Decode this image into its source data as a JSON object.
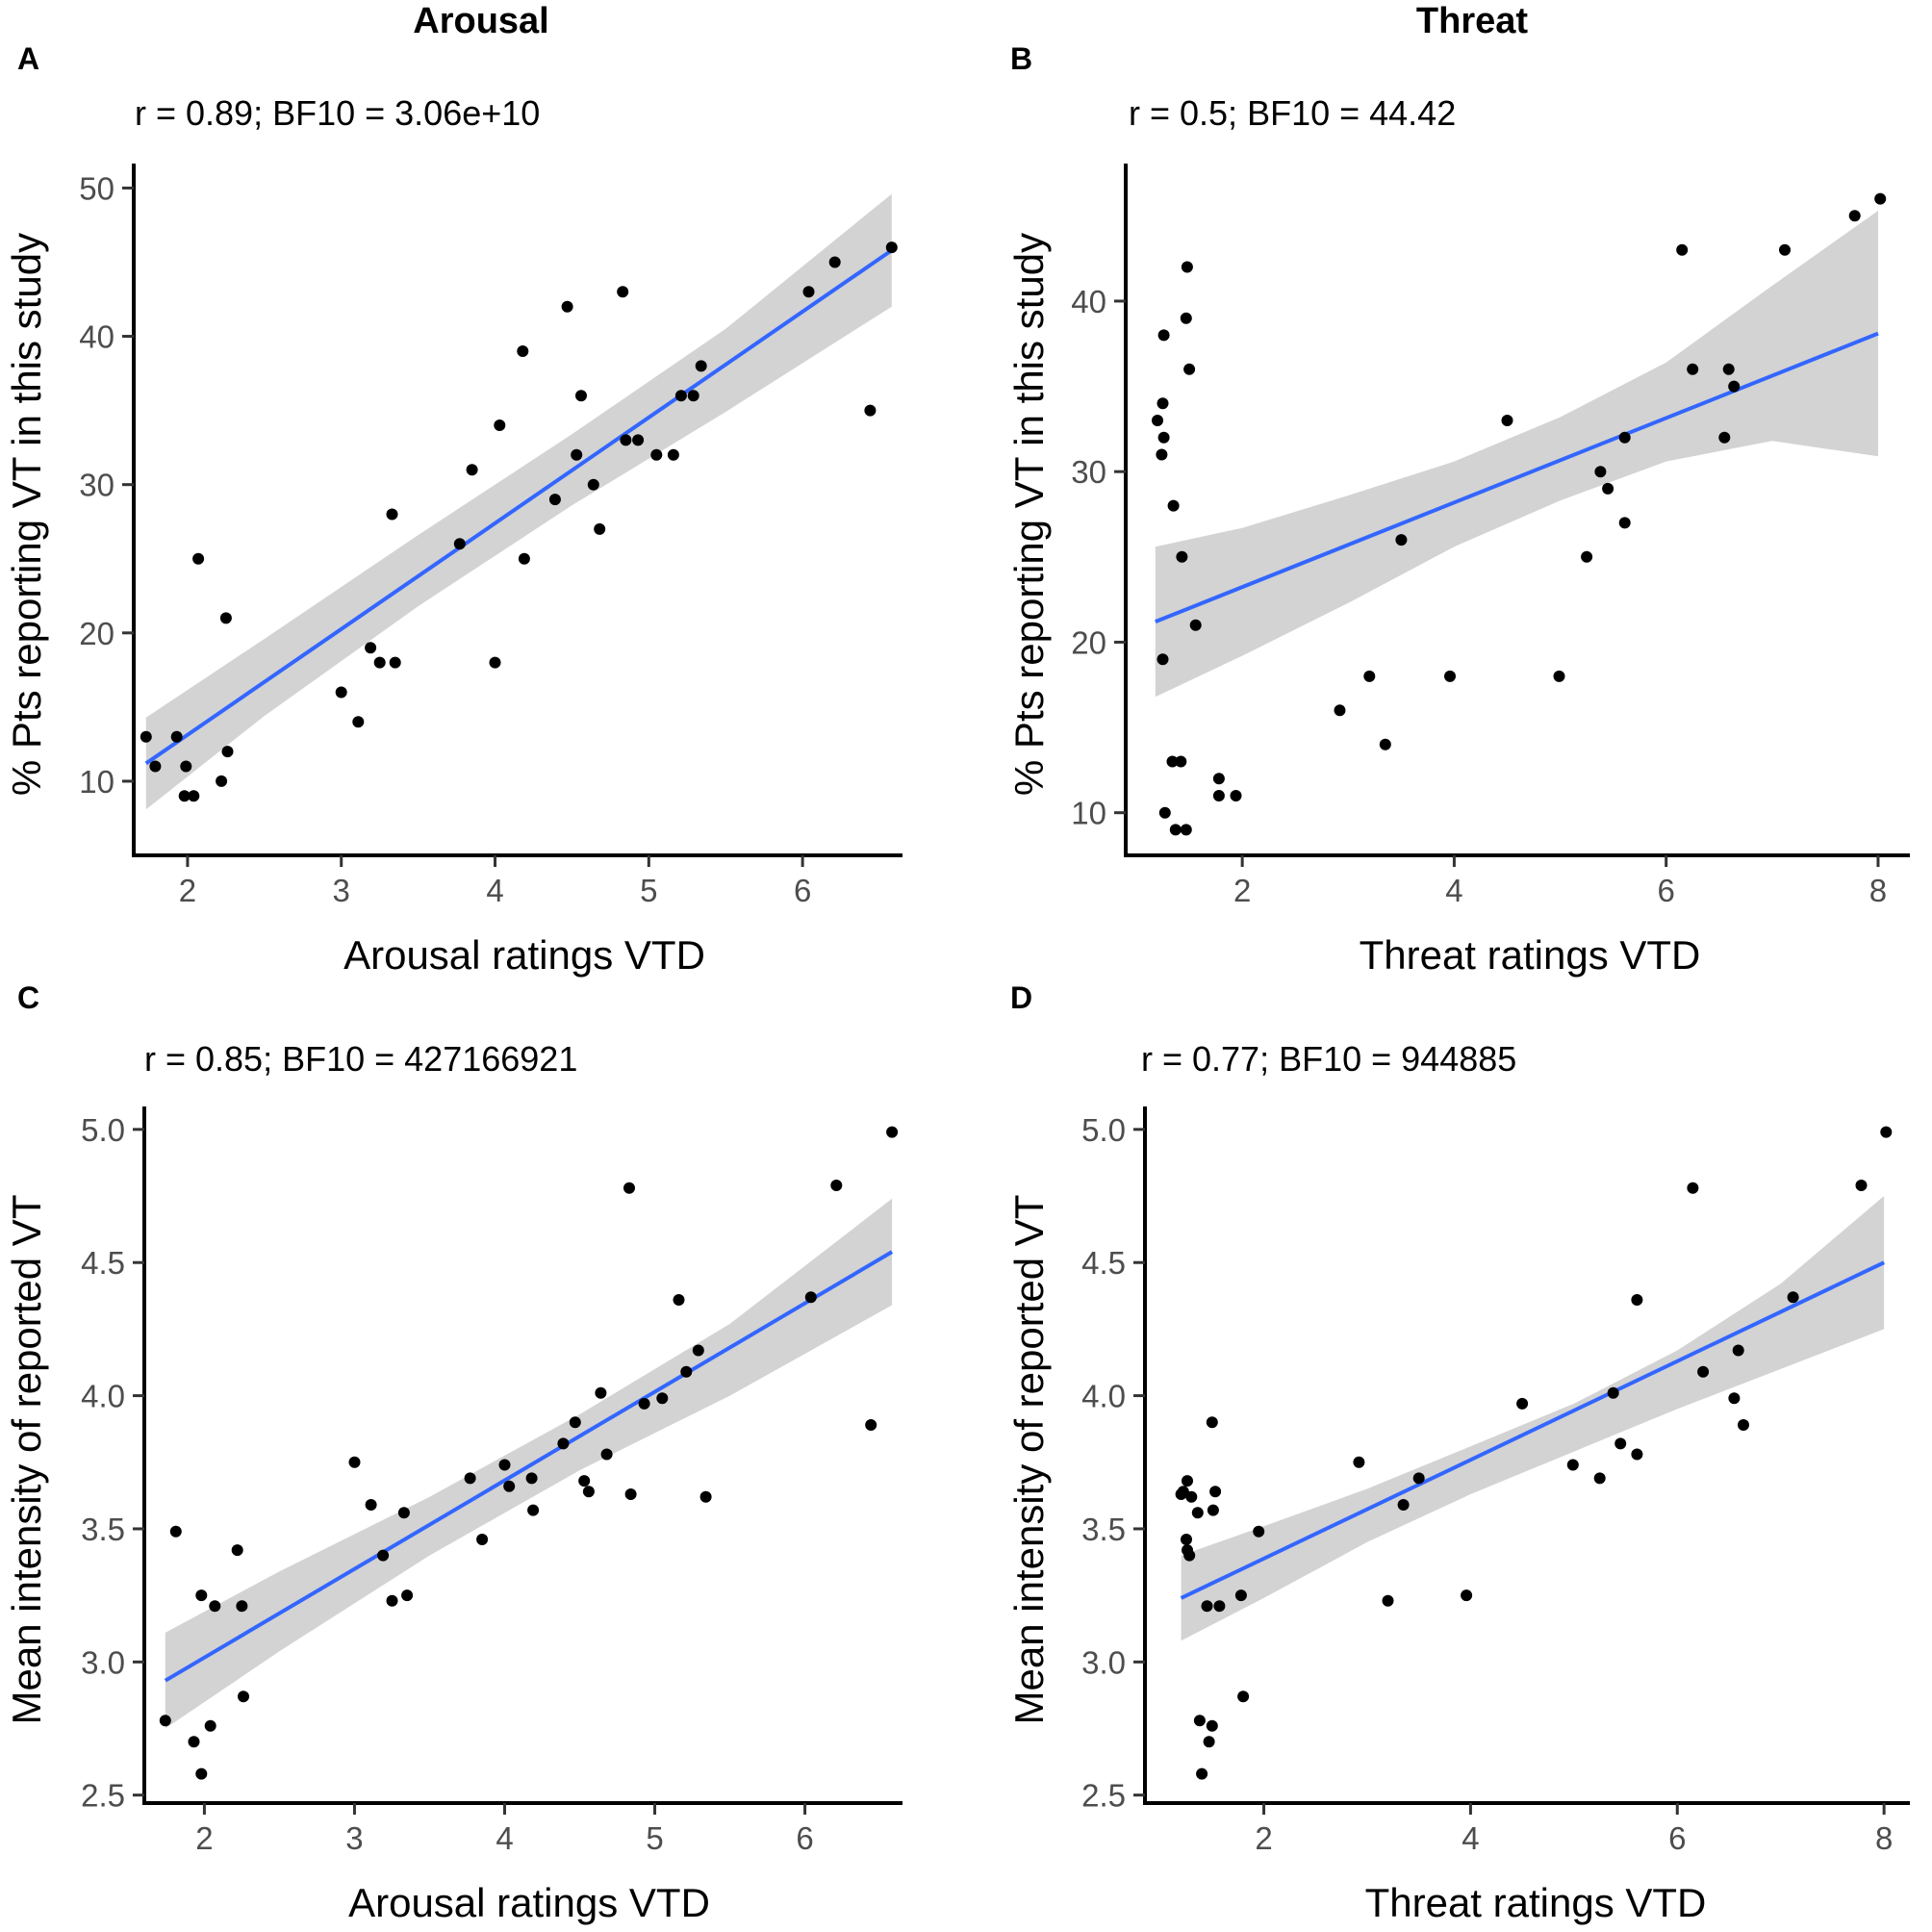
{
  "column_titles": [
    "Arousal",
    "Threat"
  ],
  "chart_data": [
    {
      "type": "scatter",
      "panel_label": "A",
      "annotation": "r = 0.89; BF10 = 3.06e+10",
      "xlabel": "Arousal ratings VTD",
      "ylabel": "% Pts reporting VT in this study",
      "xlim": [
        1.65,
        6.65
      ],
      "ylim": [
        5,
        51
      ],
      "xticks": [
        2,
        3,
        4,
        5,
        6
      ],
      "yticks": [
        10,
        20,
        30,
        40,
        50
      ],
      "fit": {
        "x": [
          1.73,
          6.58
        ],
        "y": [
          11.2,
          45.8
        ]
      },
      "band": {
        "x": [
          1.73,
          2.5,
          3.5,
          4.5,
          5.5,
          6.58
        ],
        "upper": [
          14.3,
          19.6,
          26.6,
          33.4,
          40.5,
          49.6
        ],
        "lower": [
          8.1,
          14.4,
          21.8,
          28.6,
          34.9,
          42.0
        ]
      },
      "points": [
        [
          1.73,
          13
        ],
        [
          1.79,
          11
        ],
        [
          1.93,
          13
        ],
        [
          1.98,
          9
        ],
        [
          1.99,
          11
        ],
        [
          2.04,
          9
        ],
        [
          2.07,
          25
        ],
        [
          2.22,
          10
        ],
        [
          2.25,
          21
        ],
        [
          2.26,
          12
        ],
        [
          3.0,
          16
        ],
        [
          3.11,
          14
        ],
        [
          3.19,
          19
        ],
        [
          3.25,
          18
        ],
        [
          3.33,
          28
        ],
        [
          3.35,
          18
        ],
        [
          3.77,
          26
        ],
        [
          3.85,
          31
        ],
        [
          4.0,
          18
        ],
        [
          4.03,
          34
        ],
        [
          4.18,
          39
        ],
        [
          4.19,
          25
        ],
        [
          4.39,
          29
        ],
        [
          4.47,
          42
        ],
        [
          4.53,
          32
        ],
        [
          4.56,
          36
        ],
        [
          4.64,
          30
        ],
        [
          4.68,
          27
        ],
        [
          4.83,
          43
        ],
        [
          4.85,
          33
        ],
        [
          4.93,
          33
        ],
        [
          5.05,
          32
        ],
        [
          5.16,
          32
        ],
        [
          5.21,
          36
        ],
        [
          5.29,
          36
        ],
        [
          5.34,
          38
        ],
        [
          6.04,
          43
        ],
        [
          6.21,
          45
        ],
        [
          6.44,
          35
        ],
        [
          6.58,
          46
        ]
      ]
    },
    {
      "type": "scatter",
      "panel_label": "B",
      "annotation": "r = 0.5; BF10 = 44.42",
      "xlabel": "Threat ratings VTD",
      "ylabel": "% Pts reporting VT in this study",
      "xlim": [
        0.9,
        8.3
      ],
      "ylim": [
        7.5,
        47.5
      ],
      "xticks": [
        2,
        4,
        6,
        8
      ],
      "yticks": [
        10,
        20,
        30,
        40
      ],
      "fit": {
        "x": [
          1.18,
          8.0
        ],
        "y": [
          21.2,
          38.1
        ]
      },
      "band": {
        "x": [
          1.18,
          2.0,
          3.0,
          4.0,
          5.0,
          6.0,
          7.0,
          8.0
        ],
        "upper": [
          25.6,
          26.7,
          28.6,
          30.6,
          33.2,
          36.4,
          40.9,
          45.3
        ],
        "lower": [
          16.8,
          19.2,
          22.3,
          25.6,
          28.3,
          30.6,
          31.8,
          30.9
        ]
      },
      "points": [
        [
          1.2,
          33
        ],
        [
          1.24,
          31
        ],
        [
          1.25,
          34
        ],
        [
          1.26,
          38
        ],
        [
          1.26,
          32
        ],
        [
          1.25,
          19
        ],
        [
          1.27,
          10
        ],
        [
          1.34,
          13
        ],
        [
          1.35,
          28
        ],
        [
          1.37,
          9
        ],
        [
          1.42,
          13
        ],
        [
          1.43,
          25
        ],
        [
          1.47,
          9
        ],
        [
          1.47,
          39
        ],
        [
          1.48,
          42
        ],
        [
          1.5,
          36
        ],
        [
          1.56,
          21
        ],
        [
          1.78,
          12
        ],
        [
          1.78,
          11
        ],
        [
          1.94,
          11
        ],
        [
          2.92,
          16
        ],
        [
          3.2,
          18
        ],
        [
          3.35,
          14
        ],
        [
          3.5,
          26
        ],
        [
          3.96,
          18
        ],
        [
          4.5,
          33
        ],
        [
          4.99,
          18
        ],
        [
          5.25,
          25
        ],
        [
          5.38,
          30
        ],
        [
          5.45,
          29
        ],
        [
          5.61,
          32
        ],
        [
          5.61,
          27
        ],
        [
          6.15,
          43
        ],
        [
          6.25,
          36
        ],
        [
          6.55,
          32
        ],
        [
          6.59,
          36
        ],
        [
          6.64,
          35
        ],
        [
          7.12,
          43
        ],
        [
          7.78,
          45
        ],
        [
          8.02,
          46
        ]
      ]
    },
    {
      "type": "scatter",
      "panel_label": "C",
      "annotation": "r = 0.85; BF10 = 427166921",
      "xlabel": "Arousal ratings VTD",
      "ylabel": "Mean intensity of reported VT",
      "xlim": [
        1.6,
        6.65
      ],
      "ylim": [
        2.47,
        5.05
      ],
      "xticks": [
        2,
        3,
        4,
        5,
        6
      ],
      "yticks": [
        "2.5",
        "3.0",
        "3.5",
        "4.0",
        "4.5",
        "5.0"
      ],
      "fit": {
        "x": [
          1.74,
          6.58
        ],
        "y": [
          2.93,
          4.54
        ]
      },
      "band": {
        "x": [
          1.74,
          2.5,
          3.5,
          4.5,
          5.5,
          6.58
        ],
        "upper": [
          3.11,
          3.34,
          3.62,
          3.93,
          4.27,
          4.74
        ],
        "lower": [
          2.75,
          3.04,
          3.4,
          3.72,
          4.0,
          4.34
        ]
      },
      "points": [
        [
          1.74,
          2.78
        ],
        [
          1.81,
          3.49
        ],
        [
          1.93,
          2.7
        ],
        [
          1.98,
          3.25
        ],
        [
          1.98,
          2.58
        ],
        [
          2.04,
          2.76
        ],
        [
          2.07,
          3.21
        ],
        [
          2.22,
          3.42
        ],
        [
          2.25,
          3.21
        ],
        [
          2.26,
          2.87
        ],
        [
          3.0,
          3.75
        ],
        [
          3.11,
          3.59
        ],
        [
          3.19,
          3.4
        ],
        [
          3.25,
          3.23
        ],
        [
          3.33,
          3.56
        ],
        [
          3.35,
          3.25
        ],
        [
          3.77,
          3.69
        ],
        [
          3.85,
          3.46
        ],
        [
          4.0,
          3.74
        ],
        [
          4.03,
          3.66
        ],
        [
          4.18,
          3.69
        ],
        [
          4.19,
          3.57
        ],
        [
          4.39,
          3.82
        ],
        [
          4.47,
          3.9
        ],
        [
          4.53,
          3.68
        ],
        [
          4.56,
          3.64
        ],
        [
          4.64,
          4.01
        ],
        [
          4.68,
          3.78
        ],
        [
          4.83,
          4.78
        ],
        [
          4.84,
          3.63
        ],
        [
          4.93,
          3.97
        ],
        [
          5.05,
          3.99
        ],
        [
          5.16,
          4.36
        ],
        [
          5.21,
          4.09
        ],
        [
          5.29,
          4.17
        ],
        [
          5.34,
          3.62
        ],
        [
          6.04,
          4.37
        ],
        [
          6.21,
          4.79
        ],
        [
          6.44,
          3.89
        ],
        [
          6.58,
          4.99
        ]
      ]
    },
    {
      "type": "scatter",
      "panel_label": "D",
      "annotation": "r = 0.77; BF10 = 944885",
      "xlabel": "Threat ratings VTD",
      "ylabel": "Mean intensity of reported VT",
      "xlim": [
        0.85,
        8.25
      ],
      "ylim": [
        2.47,
        5.05
      ],
      "xticks": [
        2,
        4,
        6,
        8
      ],
      "yticks": [
        "2.5",
        "3.0",
        "3.5",
        "4.0",
        "4.5",
        "5.0"
      ],
      "fit": {
        "x": [
          1.2,
          8.0
        ],
        "y": [
          3.24,
          4.5
        ]
      },
      "band": {
        "x": [
          1.2,
          2.0,
          3.0,
          4.0,
          5.0,
          6.0,
          7.0,
          8.0
        ],
        "upper": [
          3.4,
          3.51,
          3.65,
          3.81,
          3.97,
          4.17,
          4.42,
          4.75
        ],
        "lower": [
          3.08,
          3.24,
          3.45,
          3.63,
          3.79,
          3.95,
          4.1,
          4.25
        ]
      },
      "points": [
        [
          1.2,
          3.63
        ],
        [
          1.22,
          3.64
        ],
        [
          1.25,
          3.46
        ],
        [
          1.26,
          3.68
        ],
        [
          1.26,
          3.42
        ],
        [
          1.28,
          3.4
        ],
        [
          1.3,
          3.62
        ],
        [
          1.36,
          3.56
        ],
        [
          1.38,
          2.78
        ],
        [
          1.4,
          2.58
        ],
        [
          1.45,
          3.21
        ],
        [
          1.47,
          2.7
        ],
        [
          1.5,
          3.9
        ],
        [
          1.5,
          2.76
        ],
        [
          1.51,
          3.57
        ],
        [
          1.53,
          3.64
        ],
        [
          1.57,
          3.21
        ],
        [
          1.78,
          3.25
        ],
        [
          1.8,
          2.87
        ],
        [
          1.95,
          3.49
        ],
        [
          2.92,
          3.75
        ],
        [
          3.2,
          3.23
        ],
        [
          3.35,
          3.59
        ],
        [
          3.5,
          3.69
        ],
        [
          3.96,
          3.25
        ],
        [
          4.5,
          3.97
        ],
        [
          4.99,
          3.74
        ],
        [
          5.25,
          3.69
        ],
        [
          5.38,
          4.01
        ],
        [
          5.45,
          3.82
        ],
        [
          5.61,
          4.36
        ],
        [
          5.61,
          3.78
        ],
        [
          6.15,
          4.78
        ],
        [
          6.25,
          4.09
        ],
        [
          6.55,
          3.99
        ],
        [
          6.59,
          4.17
        ],
        [
          6.64,
          3.89
        ],
        [
          7.12,
          4.37
        ],
        [
          7.78,
          4.79
        ],
        [
          8.02,
          4.99
        ]
      ]
    }
  ]
}
